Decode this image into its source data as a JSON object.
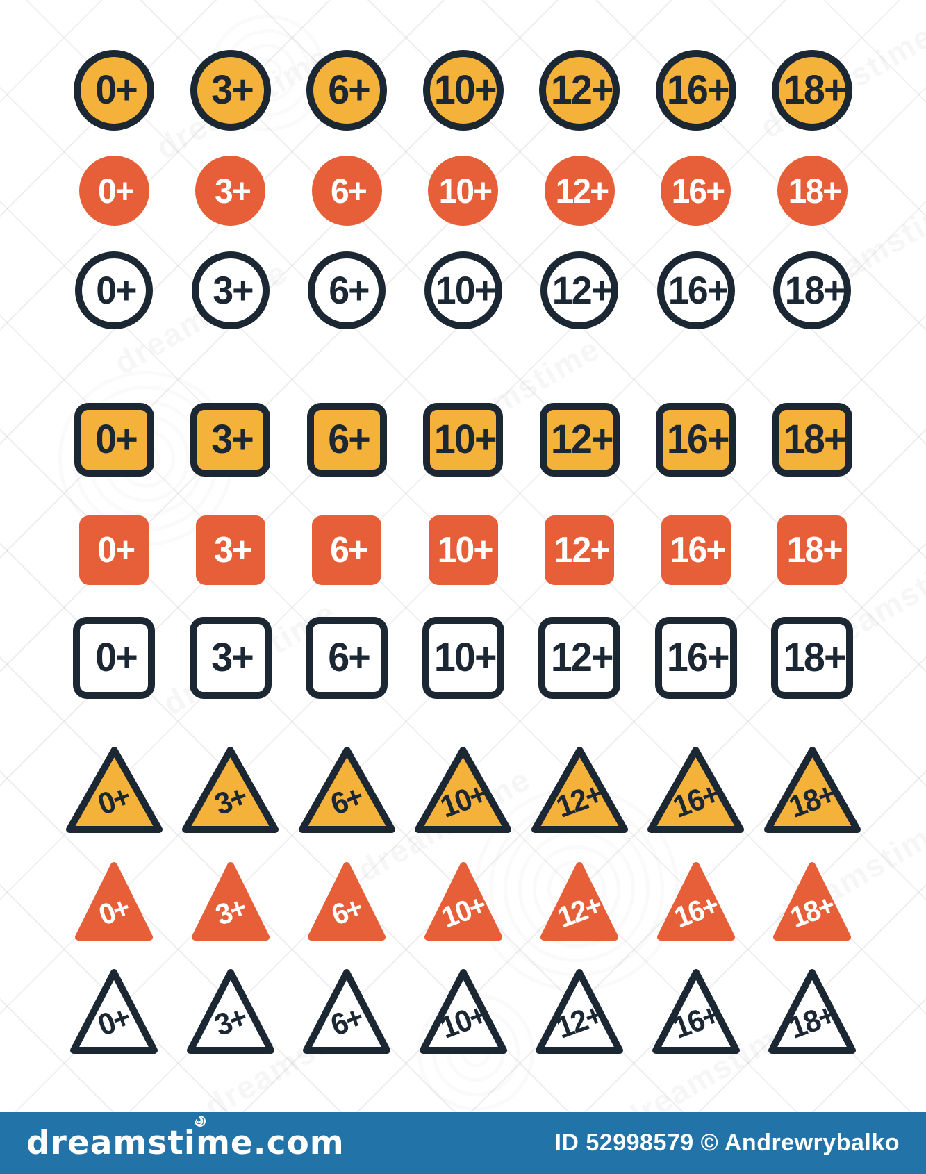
{
  "colors": {
    "yellow": "#F4B23A",
    "orange": "#E65F38",
    "navy": "#1C2734",
    "white": "#FFFFFF",
    "footer_blue": "#2173A8"
  },
  "grid": {
    "ratings": [
      "0+",
      "3+",
      "6+",
      "10+",
      "12+",
      "16+",
      "18+"
    ],
    "rows": [
      {
        "shape": "circle",
        "variant": "yellow"
      },
      {
        "shape": "circle",
        "variant": "orange"
      },
      {
        "shape": "circle",
        "variant": "outline"
      },
      {
        "shape": "square",
        "variant": "yellow"
      },
      {
        "shape": "square",
        "variant": "orange"
      },
      {
        "shape": "square",
        "variant": "outline"
      },
      {
        "shape": "triangle",
        "variant": "yellow"
      },
      {
        "shape": "triangle",
        "variant": "orange"
      },
      {
        "shape": "triangle",
        "variant": "outline"
      }
    ]
  },
  "watermark": {
    "brand": "dreamstime"
  },
  "footer": {
    "logo": "dreamstime.com",
    "credit": "ID 52998579 © Andrewrybalko"
  }
}
